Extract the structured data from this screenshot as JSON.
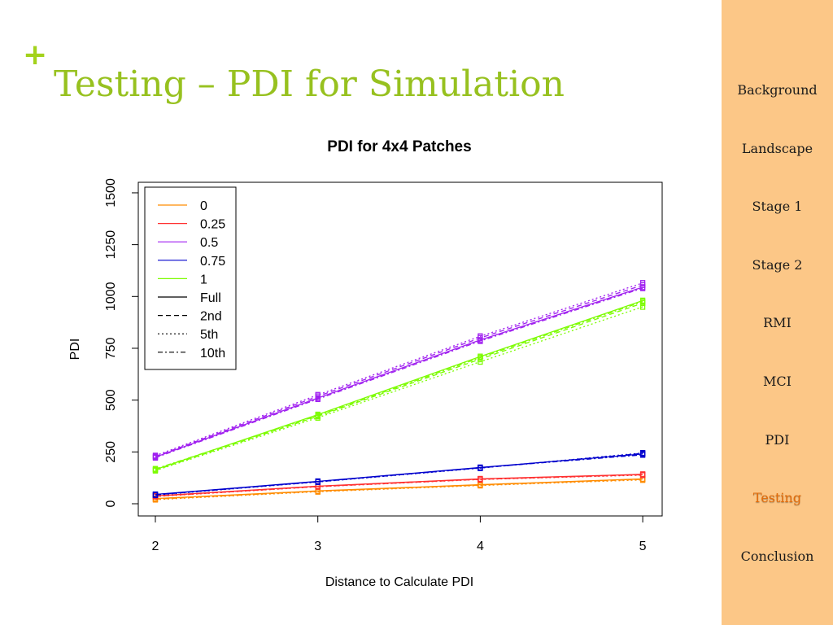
{
  "slide": {
    "title": "Testing – PDI for Simulation",
    "accent_color": "#97c11f"
  },
  "sidebar": {
    "background": "#fcc787",
    "items": [
      {
        "label": "Background",
        "active": false
      },
      {
        "label": "Landscape",
        "active": false
      },
      {
        "label": "Stage 1",
        "active": false
      },
      {
        "label": "Stage 2",
        "active": false
      },
      {
        "label": "RMI",
        "active": false
      },
      {
        "label": "MCI",
        "active": false
      },
      {
        "label": "PDI",
        "active": false
      },
      {
        "label": "Testing",
        "active": true
      },
      {
        "label": "Conclusion",
        "active": false
      }
    ]
  },
  "chart_data": {
    "type": "line",
    "title": "PDI for 4x4 Patches",
    "xlabel": "Distance to Calculate PDI",
    "ylabel": "PDI",
    "x": [
      2,
      3,
      4,
      5
    ],
    "xlim": [
      1.9,
      5.1
    ],
    "ylim": [
      -60,
      1550
    ],
    "xticks": [
      "2",
      "3",
      "4",
      "5"
    ],
    "yticks": [
      "0",
      "250",
      "500",
      "750",
      "1000",
      "1250",
      "1500"
    ],
    "grid": false,
    "legend_position": "top-left",
    "legend": [
      {
        "label": "0",
        "color": "#ff8c00",
        "linestyle": "solid"
      },
      {
        "label": "0.25",
        "color": "#ff3030",
        "linestyle": "solid"
      },
      {
        "label": "0.5",
        "color": "#a020f0",
        "linestyle": "solid"
      },
      {
        "label": "0.75",
        "color": "#0000cd",
        "linestyle": "solid"
      },
      {
        "label": "1",
        "color": "#7cfc00",
        "linestyle": "solid"
      },
      {
        "label": "Full",
        "color": "#000000",
        "linestyle": "solid"
      },
      {
        "label": "2nd",
        "color": "#000000",
        "linestyle": "dashed"
      },
      {
        "label": "5th",
        "color": "#000000",
        "linestyle": "dotted"
      },
      {
        "label": "10th",
        "color": "#000000",
        "linestyle": "dashdot"
      }
    ],
    "series": [
      {
        "color": "#ff8c00",
        "dash": "solid",
        "values": [
          25,
          62,
          92,
          120
        ]
      },
      {
        "color": "#ff8c00",
        "dash": "dashed",
        "values": [
          22,
          60,
          90,
          118
        ]
      },
      {
        "color": "#ff8c00",
        "dash": "dotted",
        "values": [
          20,
          58,
          88,
          115
        ]
      },
      {
        "color": "#ff8c00",
        "dash": "dashdot",
        "values": [
          24,
          61,
          91,
          119
        ]
      },
      {
        "color": "#ff3030",
        "dash": "solid",
        "values": [
          38,
          85,
          120,
          142
        ]
      },
      {
        "color": "#ff3030",
        "dash": "dashed",
        "values": [
          36,
          83,
          118,
          140
        ]
      },
      {
        "color": "#ff3030",
        "dash": "dotted",
        "values": [
          35,
          82,
          117,
          138
        ]
      },
      {
        "color": "#ff3030",
        "dash": "dashdot",
        "values": [
          37,
          84,
          119,
          141
        ]
      },
      {
        "color": "#a020f0",
        "dash": "solid",
        "values": [
          225,
          510,
          790,
          1045
        ]
      },
      {
        "color": "#a020f0",
        "dash": "dashed",
        "values": [
          228,
          518,
          800,
          1055
        ]
      },
      {
        "color": "#a020f0",
        "dash": "dotted",
        "values": [
          232,
          525,
          808,
          1065
        ]
      },
      {
        "color": "#a020f0",
        "dash": "dashdot",
        "values": [
          222,
          505,
          785,
          1040
        ]
      },
      {
        "color": "#0000cd",
        "dash": "solid",
        "values": [
          45,
          108,
          175,
          240
        ]
      },
      {
        "color": "#0000cd",
        "dash": "dashed",
        "values": [
          43,
          106,
          173,
          243
        ]
      },
      {
        "color": "#0000cd",
        "dash": "dotted",
        "values": [
          42,
          105,
          172,
          245
        ]
      },
      {
        "color": "#0000cd",
        "dash": "dashdot",
        "values": [
          44,
          107,
          174,
          236
        ]
      },
      {
        "color": "#7cfc00",
        "dash": "solid",
        "values": [
          165,
          430,
          710,
          980
        ]
      },
      {
        "color": "#7cfc00",
        "dash": "dashed",
        "values": [
          162,
          422,
          698,
          968
        ]
      },
      {
        "color": "#7cfc00",
        "dash": "dotted",
        "values": [
          160,
          415,
          685,
          950
        ]
      },
      {
        "color": "#7cfc00",
        "dash": "dashdot",
        "values": [
          168,
          425,
          705,
          975
        ]
      }
    ]
  }
}
